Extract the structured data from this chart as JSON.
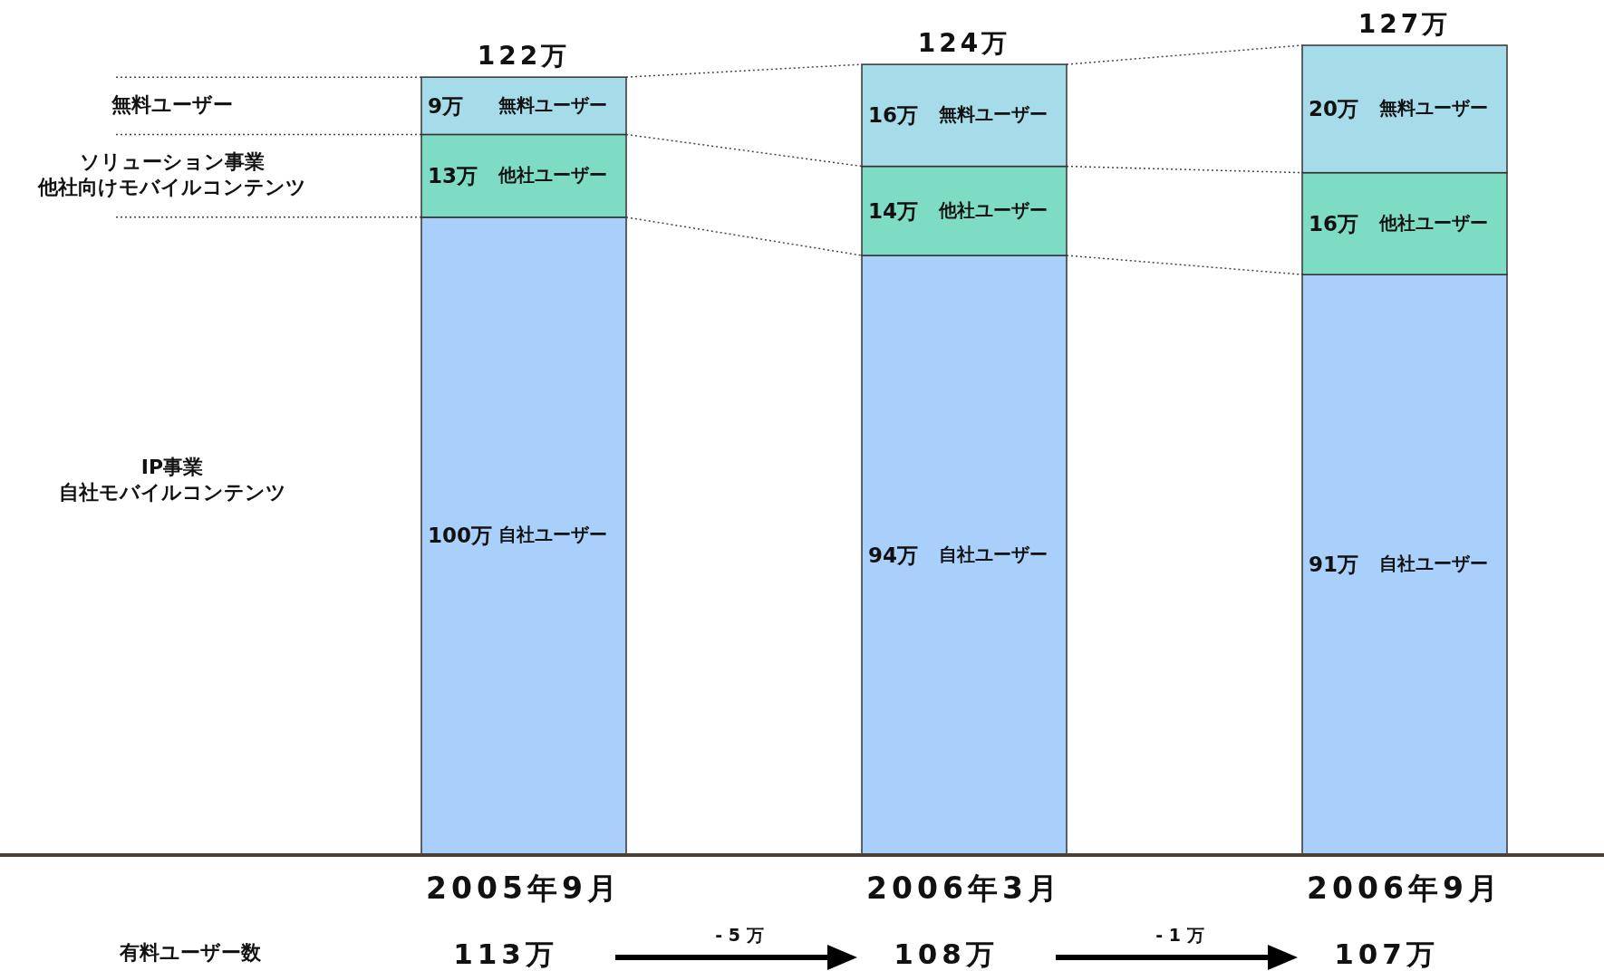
{
  "chart_data": {
    "type": "bar",
    "stacked": true,
    "categories": [
      "2005年9月",
      "2006年3月",
      "2006年9月"
    ],
    "series": [
      {
        "name": "自社ユーザー",
        "color": "#a8d0fb",
        "values": [
          100,
          94,
          91
        ],
        "value_labels": [
          "100万",
          "94万",
          "91万"
        ]
      },
      {
        "name": "他社ユーザー",
        "color": "#7fdcc4",
        "values": [
          13,
          14,
          16
        ],
        "value_labels": [
          "13万",
          "14万",
          "16万"
        ]
      },
      {
        "name": "無料ユーザー",
        "color": "#a6dcea",
        "values": [
          9,
          16,
          20
        ],
        "value_labels": [
          "9万",
          "16万",
          "20万"
        ]
      }
    ],
    "totals": [
      "122万",
      "124万",
      "127万"
    ],
    "annotations": [
      "無料ユーザー",
      "ソリューション事業",
      "他社向けモバイルコンテンツ",
      "IP事業",
      "自社モバイルコンテンツ",
      "有料ユーザー数",
      "113万",
      "108万",
      "107万",
      "- 5 万",
      "- 1 万"
    ]
  }
}
